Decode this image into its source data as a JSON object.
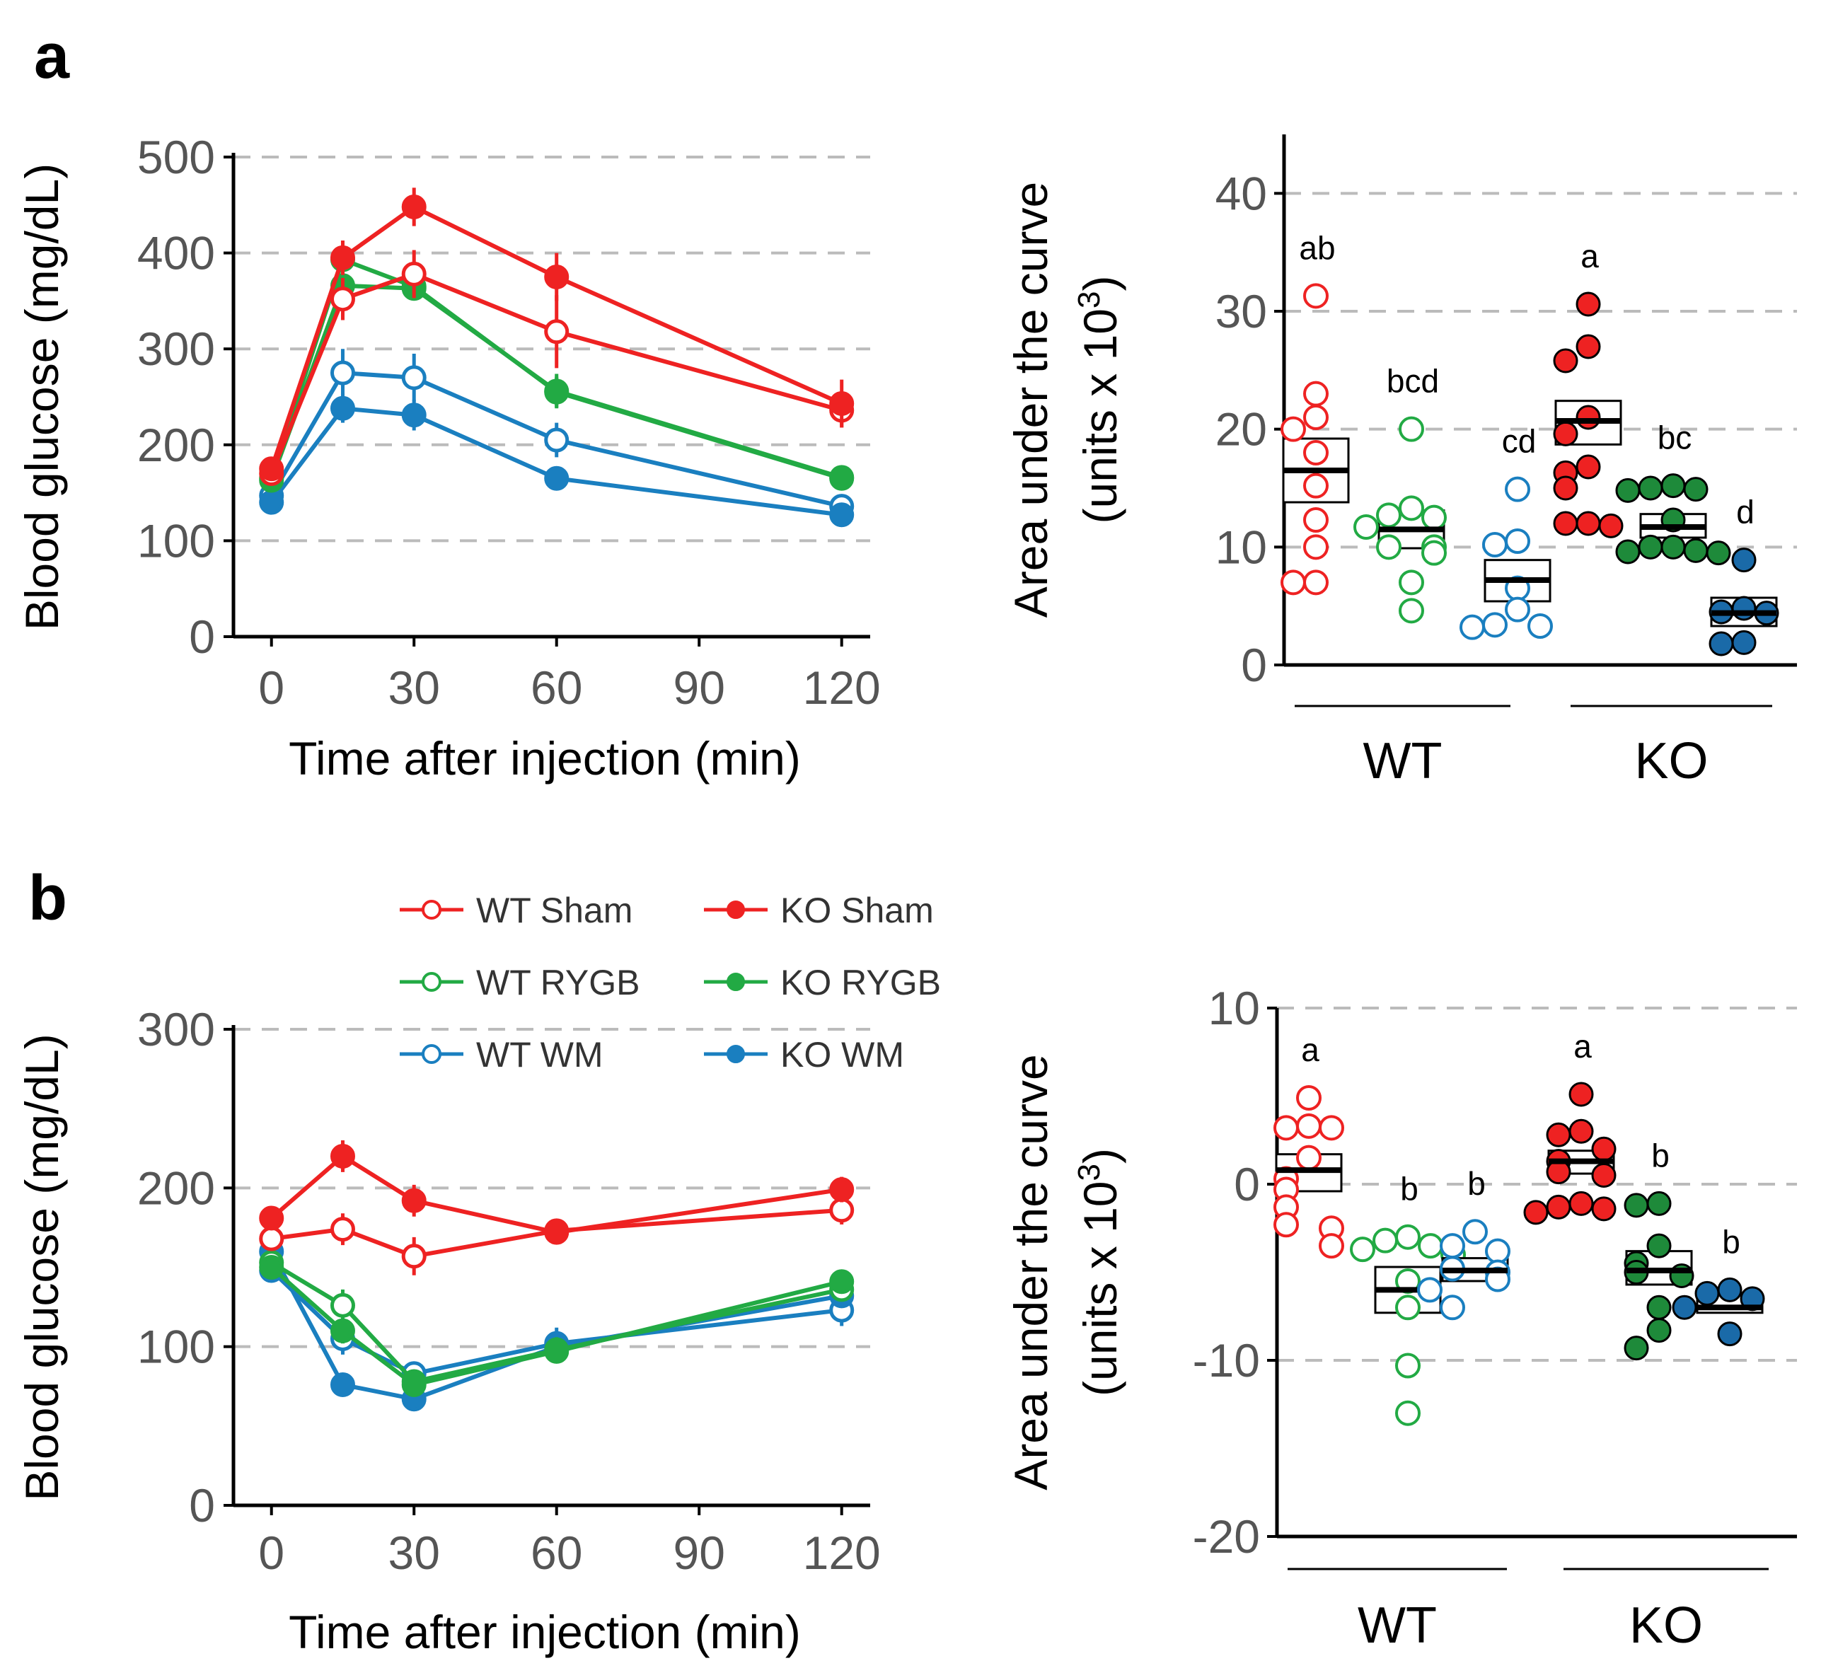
{
  "panels": [
    {
      "letter": "a"
    },
    {
      "letter": "b"
    }
  ],
  "colors": {
    "red": "#ee2222",
    "green": "#22aa44",
    "blue": "#1a7fc0",
    "dark_green": "#1e8a3a",
    "dark_blue": "#1a6aa8"
  },
  "legend": {
    "items": [
      {
        "label": "WT Sham",
        "color": "#ee2222",
        "filled": false
      },
      {
        "label": "KO Sham",
        "color": "#ee2222",
        "filled": true
      },
      {
        "label": "WT RYGB",
        "color": "#22aa44",
        "filled": false
      },
      {
        "label": "KO RYGB",
        "color": "#22aa44",
        "filled": true
      },
      {
        "label": "WT WM",
        "color": "#1a7fc0",
        "filled": false
      },
      {
        "label": "KO WM",
        "color": "#1a7fc0",
        "filled": true
      }
    ]
  },
  "chart_data": [
    {
      "id": "a-line",
      "panel": "a",
      "type": "line",
      "xlabel": "Time after injection (min)",
      "ylabel": "Blood glucose (mg/dL)",
      "xlim": [
        -8,
        126
      ],
      "ylim": [
        0,
        500
      ],
      "xticks": [
        0,
        30,
        60,
        90,
        120
      ],
      "yticks": [
        0,
        100,
        200,
        300,
        400,
        500
      ],
      "grid_y": [
        100,
        200,
        300,
        400,
        500
      ],
      "x": [
        0,
        15,
        30,
        60,
        120
      ],
      "series": [
        {
          "name": "WT Sham",
          "color": "#ee2222",
          "filled": false,
          "values": [
            170,
            352,
            378,
            318,
            236
          ],
          "err": [
            10,
            22,
            25,
            38,
            18
          ]
        },
        {
          "name": "KO Sham",
          "color": "#ee2222",
          "filled": true,
          "values": [
            175,
            395,
            448,
            375,
            243
          ],
          "err": [
            10,
            18,
            20,
            25,
            25
          ]
        },
        {
          "name": "WT RYGB",
          "color": "#22aa44",
          "filled": false,
          "values": [
            165,
            393,
            365,
            255,
            165
          ],
          "err": [
            8,
            12,
            14,
            16,
            8
          ]
        },
        {
          "name": "KO RYGB",
          "color": "#22aa44",
          "filled": true,
          "values": [
            163,
            366,
            363,
            256,
            166
          ],
          "err": [
            8,
            10,
            12,
            18,
            8
          ]
        },
        {
          "name": "WT WM",
          "color": "#1a7fc0",
          "filled": false,
          "values": [
            147,
            275,
            270,
            205,
            136
          ],
          "err": [
            10,
            25,
            25,
            18,
            8
          ]
        },
        {
          "name": "KO WM",
          "color": "#1a7fc0",
          "filled": true,
          "values": [
            140,
            238,
            231,
            165,
            127
          ],
          "err": [
            8,
            15,
            16,
            10,
            8
          ]
        }
      ]
    },
    {
      "id": "a-auc",
      "panel": "a",
      "type": "scatter",
      "ylabel_line1": "Area under the curve",
      "ylabel_line2_prefix": "(units x 10",
      "ylabel_line2_sup": "3",
      "ylabel_line2_suffix": ")",
      "ylim": [
        0,
        45
      ],
      "yticks": [
        0,
        10,
        20,
        30,
        40
      ],
      "grid_y": [
        10,
        20,
        30,
        40
      ],
      "groups": [
        {
          "label": "WT",
          "columns": [
            0,
            1,
            2
          ]
        },
        {
          "label": "KO",
          "columns": [
            3,
            4,
            5
          ]
        }
      ],
      "columns": [
        {
          "name": "WT Sham",
          "color": "#ee2222",
          "filled": false,
          "letter": "ab",
          "mean": 16.5,
          "se_low": 13.8,
          "se_high": 19.2,
          "points": [
            31.3,
            23.0,
            21.0,
            20.0,
            18.0,
            15.2,
            12.3,
            10.0,
            7.0,
            7.0
          ]
        },
        {
          "name": "WT RYGB",
          "color": "#22aa44",
          "filled": false,
          "letter": "bcd",
          "mean": 11.5,
          "se_low": 9.9,
          "se_high": 13.1,
          "points": [
            20.0,
            13.3,
            12.7,
            12.5,
            11.7,
            10.0,
            10.0,
            9.5,
            7.0,
            4.6
          ]
        },
        {
          "name": "WT WM",
          "color": "#1a7fc0",
          "filled": false,
          "letter": "cd",
          "mean": 7.2,
          "se_low": 5.4,
          "se_high": 8.9,
          "points": [
            14.9,
            10.5,
            10.2,
            6.5,
            4.7,
            3.4,
            3.3,
            3.2
          ]
        },
        {
          "name": "KO Sham",
          "color": "#ee2222",
          "filled": true,
          "letter": "a",
          "mean": 20.7,
          "se_low": 18.7,
          "se_high": 22.4,
          "points": [
            30.6,
            27.0,
            25.8,
            21.0,
            19.6,
            16.8,
            16.3,
            15.0,
            12.0,
            12.0,
            11.8
          ]
        },
        {
          "name": "KO RYGB",
          "color": "#1e8a3a",
          "filled": true,
          "letter": "bc",
          "mean": 11.7,
          "se_low": 10.8,
          "se_high": 12.8,
          "points": [
            15.2,
            15.0,
            14.9,
            14.8,
            12.3,
            10.0,
            10.0,
            9.7,
            9.6,
            9.5
          ]
        },
        {
          "name": "KO WM",
          "color": "#1a6aa8",
          "filled": true,
          "letter": "d",
          "mean": 4.4,
          "se_low": 3.3,
          "se_high": 5.7,
          "points": [
            8.9,
            4.8,
            4.4,
            4.5,
            1.8,
            1.9
          ]
        }
      ]
    },
    {
      "id": "b-line",
      "panel": "b",
      "type": "line",
      "xlabel": "Time after injection (min)",
      "ylabel": "Blood glucose (mg/dL)",
      "xlim": [
        -8,
        126
      ],
      "ylim": [
        0,
        300
      ],
      "xticks": [
        0,
        30,
        60,
        90,
        120
      ],
      "yticks": [
        0,
        100,
        200,
        300
      ],
      "grid_y": [
        100,
        200,
        300
      ],
      "x": [
        0,
        15,
        30,
        60,
        120
      ],
      "series": [
        {
          "name": "WT Sham",
          "color": "#ee2222",
          "filled": false,
          "values": [
            168,
            174,
            157,
            173,
            186
          ],
          "err": [
            6,
            10,
            12,
            6,
            9
          ]
        },
        {
          "name": "KO Sham",
          "color": "#ee2222",
          "filled": true,
          "values": [
            181,
            220,
            192,
            172,
            199
          ],
          "err": [
            6,
            10,
            10,
            6,
            8
          ]
        },
        {
          "name": "WT RYGB",
          "color": "#22aa44",
          "filled": false,
          "values": [
            153,
            126,
            78,
            98,
            136
          ],
          "err": [
            6,
            10,
            6,
            8,
            6
          ]
        },
        {
          "name": "KO RYGB",
          "color": "#22aa44",
          "filled": true,
          "values": [
            150,
            110,
            76,
            97,
            141
          ],
          "err": [
            6,
            8,
            6,
            6,
            6
          ]
        },
        {
          "name": "WT WM",
          "color": "#1a7fc0",
          "filled": false,
          "values": [
            148,
            105,
            83,
            102,
            123
          ],
          "err": [
            6,
            10,
            6,
            10,
            10
          ]
        },
        {
          "name": "KO WM",
          "color": "#1a7fc0",
          "filled": true,
          "values": [
            160,
            76,
            67,
            100,
            132
          ],
          "err": [
            6,
            6,
            6,
            6,
            6
          ]
        }
      ]
    },
    {
      "id": "b-auc",
      "panel": "b",
      "type": "scatter",
      "ylabel_line1": "Area under the curve",
      "ylabel_line2_prefix": "(units x 10",
      "ylabel_line2_sup": "3",
      "ylabel_line2_suffix": ")",
      "ylim": [
        -20,
        10
      ],
      "yticks": [
        -20,
        -10,
        0,
        10
      ],
      "grid_y": [
        -10,
        0,
        10
      ],
      "groups": [
        {
          "label": "WT",
          "columns": [
            0,
            1,
            2
          ]
        },
        {
          "label": "KO",
          "columns": [
            3,
            4,
            5
          ]
        }
      ],
      "columns": [
        {
          "name": "WT Sham",
          "color": "#ee2222",
          "filled": false,
          "letter": "a",
          "mean": 0.8,
          "se_low": -0.4,
          "se_high": 1.7,
          "points": [
            4.9,
            3.3,
            3.2,
            3.2,
            1.5,
            0.3,
            -0.3,
            -1.3,
            -2.3,
            -2.5,
            -3.5
          ]
        },
        {
          "name": "WT RYGB",
          "color": "#22aa44",
          "filled": false,
          "letter": "b",
          "mean": -6.0,
          "se_low": -7.3,
          "se_high": -4.7,
          "points": [
            -3.0,
            -3.2,
            -3.5,
            -3.7,
            -4.0,
            -5.5,
            -7.0,
            -10.3,
            -13.0
          ]
        },
        {
          "name": "WT WM",
          "color": "#1a7fc0",
          "filled": false,
          "letter": "b",
          "mean": -4.9,
          "se_low": -5.5,
          "se_high": -4.2,
          "points": [
            -2.7,
            -3.5,
            -3.8,
            -4.8,
            -5.0,
            -5.4,
            -6.0,
            -7.0
          ]
        },
        {
          "name": "KO Sham",
          "color": "#ee2222",
          "filled": true,
          "letter": "a",
          "mean": 1.3,
          "se_low": 0.6,
          "se_high": 1.9,
          "points": [
            5.1,
            3.0,
            2.8,
            2.0,
            1.3,
            0.7,
            0.5,
            -1.1,
            -1.3,
            -1.4,
            -1.6
          ]
        },
        {
          "name": "KO RYGB",
          "color": "#1e8a3a",
          "filled": true,
          "letter": "b",
          "mean": -4.9,
          "se_low": -5.7,
          "se_high": -3.8,
          "points": [
            -1.1,
            -1.2,
            -3.5,
            -4.5,
            -5.0,
            -5.2,
            -7.0,
            -8.3,
            -9.3
          ]
        },
        {
          "name": "KO WM",
          "color": "#1a6aa8",
          "filled": true,
          "letter": "b",
          "mean": -7.0,
          "se_low": -7.3,
          "se_high": -6.3,
          "points": [
            -6.0,
            -6.2,
            -6.5,
            -7.0,
            -8.5
          ]
        }
      ]
    }
  ]
}
